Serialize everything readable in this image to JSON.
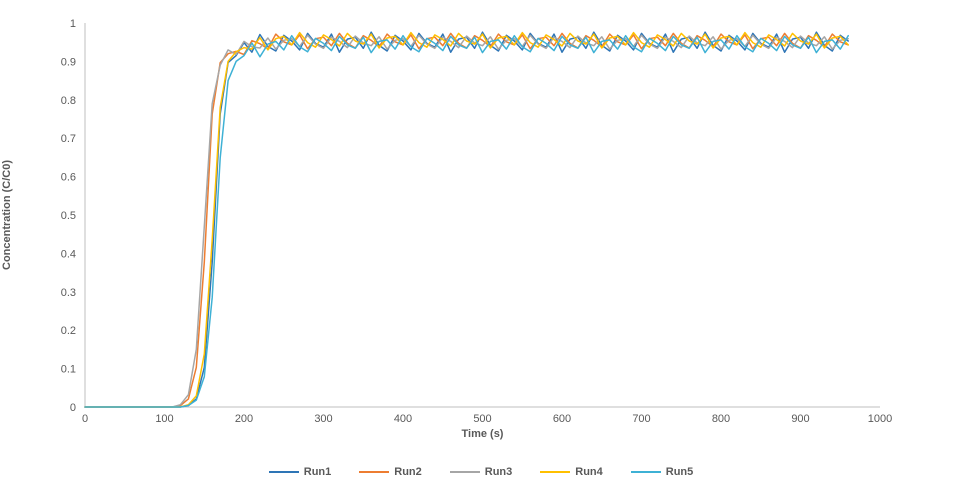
{
  "chart_data": {
    "type": "line",
    "title": "",
    "xlabel": "Time (s)",
    "ylabel": "Concentration (C/C0)",
    "xlim": [
      0,
      1000
    ],
    "ylim": [
      0,
      1
    ],
    "x_ticks": [
      0,
      100,
      200,
      300,
      400,
      500,
      600,
      700,
      800,
      900,
      1000
    ],
    "y_ticks": [
      0,
      0.1,
      0.2,
      0.3,
      0.4,
      0.5,
      0.6,
      0.7,
      0.8,
      0.9,
      1
    ],
    "grid": false,
    "legend_position": "bottom",
    "axis_color": "#BFBFBF",
    "tick_text_color": "#595959",
    "x": [
      0,
      10,
      20,
      30,
      40,
      50,
      60,
      70,
      80,
      90,
      100,
      110,
      120,
      130,
      140,
      150,
      160,
      170,
      180,
      190,
      200,
      210,
      220,
      230,
      240,
      250,
      260,
      270,
      280,
      290,
      300,
      310,
      320,
      330,
      340,
      350,
      360,
      370,
      380,
      390,
      400,
      410,
      420,
      430,
      440,
      450,
      460,
      470,
      480,
      490,
      500,
      510,
      520,
      530,
      540,
      550,
      560,
      570,
      580,
      590,
      600,
      610,
      620,
      630,
      640,
      650,
      660,
      670,
      680,
      690,
      700,
      710,
      720,
      730,
      740,
      750,
      760,
      770,
      780,
      790,
      800,
      810,
      820,
      830,
      840,
      850,
      860,
      870,
      880,
      890,
      900,
      910,
      920,
      930,
      940,
      950,
      960
    ],
    "series": [
      {
        "name": "Run1",
        "color": "#2E75B6",
        "values": [
          0,
          0,
          0,
          0,
          0,
          0,
          0,
          0,
          0,
          0,
          0,
          0,
          0,
          0.004,
          0.021,
          0.103,
          0.377,
          0.763,
          0.897,
          0.915,
          0.949,
          0.924,
          0.97,
          0.939,
          0.927,
          0.968,
          0.953,
          0.93,
          0.973,
          0.947,
          0.937,
          0.971,
          0.924,
          0.958,
          0.963,
          0.934,
          0.976,
          0.942,
          0.927,
          0.968,
          0.953,
          0.93,
          0.973,
          0.947,
          0.937,
          0.971,
          0.924,
          0.958,
          0.963,
          0.934,
          0.976,
          0.942,
          0.927,
          0.968,
          0.953,
          0.93,
          0.973,
          0.947,
          0.937,
          0.971,
          0.924,
          0.958,
          0.963,
          0.934,
          0.976,
          0.942,
          0.927,
          0.968,
          0.953,
          0.93,
          0.973,
          0.947,
          0.937,
          0.971,
          0.924,
          0.958,
          0.963,
          0.934,
          0.976,
          0.942,
          0.927,
          0.968,
          0.953,
          0.93,
          0.973,
          0.947,
          0.937,
          0.971,
          0.924,
          0.958,
          0.963,
          0.934,
          0.976,
          0.942,
          0.927,
          0.968,
          0.953
        ]
      },
      {
        "name": "Run2",
        "color": "#ED7D31",
        "values": [
          0,
          0,
          0,
          0,
          0,
          0,
          0,
          0,
          0,
          0,
          0,
          0,
          0.004,
          0.021,
          0.103,
          0.377,
          0.763,
          0.897,
          0.92,
          0.926,
          0.918,
          0.954,
          0.946,
          0.933,
          0.971,
          0.951,
          0.943,
          0.969,
          0.933,
          0.959,
          0.963,
          0.941,
          0.973,
          0.947,
          0.935,
          0.967,
          0.955,
          0.938,
          0.971,
          0.951,
          0.943,
          0.969,
          0.933,
          0.959,
          0.963,
          0.941,
          0.973,
          0.947,
          0.935,
          0.967,
          0.955,
          0.938,
          0.971,
          0.951,
          0.943,
          0.969,
          0.933,
          0.959,
          0.963,
          0.941,
          0.973,
          0.947,
          0.935,
          0.967,
          0.955,
          0.938,
          0.971,
          0.951,
          0.943,
          0.969,
          0.933,
          0.959,
          0.963,
          0.941,
          0.973,
          0.947,
          0.935,
          0.967,
          0.955,
          0.938,
          0.971,
          0.951,
          0.943,
          0.969,
          0.933,
          0.959,
          0.963,
          0.941,
          0.973,
          0.947,
          0.935,
          0.967,
          0.955,
          0.938,
          0.971,
          0.951,
          0.943
        ]
      },
      {
        "name": "Run3",
        "color": "#A6A6A6",
        "values": [
          0,
          0,
          0,
          0,
          0,
          0,
          0,
          0,
          0,
          0,
          0,
          0,
          0.006,
          0.032,
          0.15,
          0.47,
          0.79,
          0.89,
          0.93,
          0.918,
          0.952,
          0.938,
          0.935,
          0.961,
          0.932,
          0.955,
          0.959,
          0.939,
          0.968,
          0.945,
          0.934,
          0.963,
          0.952,
          0.936,
          0.966,
          0.948,
          0.941,
          0.964,
          0.932,
          0.955,
          0.959,
          0.939,
          0.968,
          0.945,
          0.934,
          0.963,
          0.952,
          0.936,
          0.966,
          0.948,
          0.941,
          0.964,
          0.932,
          0.955,
          0.959,
          0.939,
          0.968,
          0.945,
          0.934,
          0.963,
          0.952,
          0.936,
          0.966,
          0.948,
          0.941,
          0.964,
          0.932,
          0.955,
          0.959,
          0.939,
          0.968,
          0.945,
          0.934,
          0.963,
          0.952,
          0.936,
          0.966,
          0.948,
          0.941,
          0.964,
          0.932,
          0.955,
          0.959,
          0.939,
          0.968,
          0.945,
          0.934,
          0.963,
          0.952,
          0.936,
          0.966,
          0.948,
          0.941,
          0.964,
          0.932,
          0.955,
          0.959
        ]
      },
      {
        "name": "Run4",
        "color": "#FFC000",
        "values": [
          0,
          0,
          0,
          0,
          0,
          0,
          0,
          0,
          0,
          0,
          0,
          0,
          0,
          0.006,
          0.029,
          0.138,
          0.435,
          0.78,
          0.9,
          0.925,
          0.936,
          0.932,
          0.962,
          0.93,
          0.959,
          0.965,
          0.943,
          0.975,
          0.949,
          0.937,
          0.969,
          0.957,
          0.94,
          0.973,
          0.953,
          0.945,
          0.971,
          0.935,
          0.961,
          0.965,
          0.943,
          0.975,
          0.949,
          0.937,
          0.969,
          0.957,
          0.94,
          0.973,
          0.953,
          0.945,
          0.971,
          0.935,
          0.961,
          0.965,
          0.943,
          0.975,
          0.949,
          0.937,
          0.969,
          0.957,
          0.94,
          0.973,
          0.953,
          0.945,
          0.971,
          0.935,
          0.961,
          0.965,
          0.943,
          0.975,
          0.949,
          0.937,
          0.969,
          0.957,
          0.94,
          0.973,
          0.953,
          0.945,
          0.971,
          0.935,
          0.961,
          0.965,
          0.943,
          0.975,
          0.949,
          0.937,
          0.969,
          0.957,
          0.94,
          0.973,
          0.953,
          0.945,
          0.971,
          0.935,
          0.961,
          0.965,
          0.943
        ]
      },
      {
        "name": "Run5",
        "color": "#3EB1D5",
        "values": [
          0,
          0,
          0,
          0,
          0,
          0,
          0,
          0,
          0,
          0,
          0,
          0,
          0,
          0.004,
          0.018,
          0.079,
          0.285,
          0.649,
          0.85,
          0.9,
          0.915,
          0.948,
          0.912,
          0.945,
          0.952,
          0.93,
          0.967,
          0.938,
          0.925,
          0.96,
          0.947,
          0.928,
          0.965,
          0.943,
          0.934,
          0.963,
          0.923,
          0.952,
          0.956,
          0.932,
          0.967,
          0.938,
          0.925,
          0.96,
          0.947,
          0.928,
          0.965,
          0.943,
          0.934,
          0.963,
          0.923,
          0.952,
          0.956,
          0.932,
          0.967,
          0.938,
          0.925,
          0.96,
          0.947,
          0.928,
          0.965,
          0.943,
          0.934,
          0.963,
          0.923,
          0.952,
          0.956,
          0.932,
          0.967,
          0.938,
          0.925,
          0.96,
          0.947,
          0.928,
          0.965,
          0.943,
          0.934,
          0.963,
          0.923,
          0.952,
          0.956,
          0.932,
          0.967,
          0.938,
          0.925,
          0.96,
          0.947,
          0.928,
          0.965,
          0.943,
          0.934,
          0.963,
          0.923,
          0.952,
          0.956,
          0.932,
          0.967
        ]
      }
    ]
  }
}
